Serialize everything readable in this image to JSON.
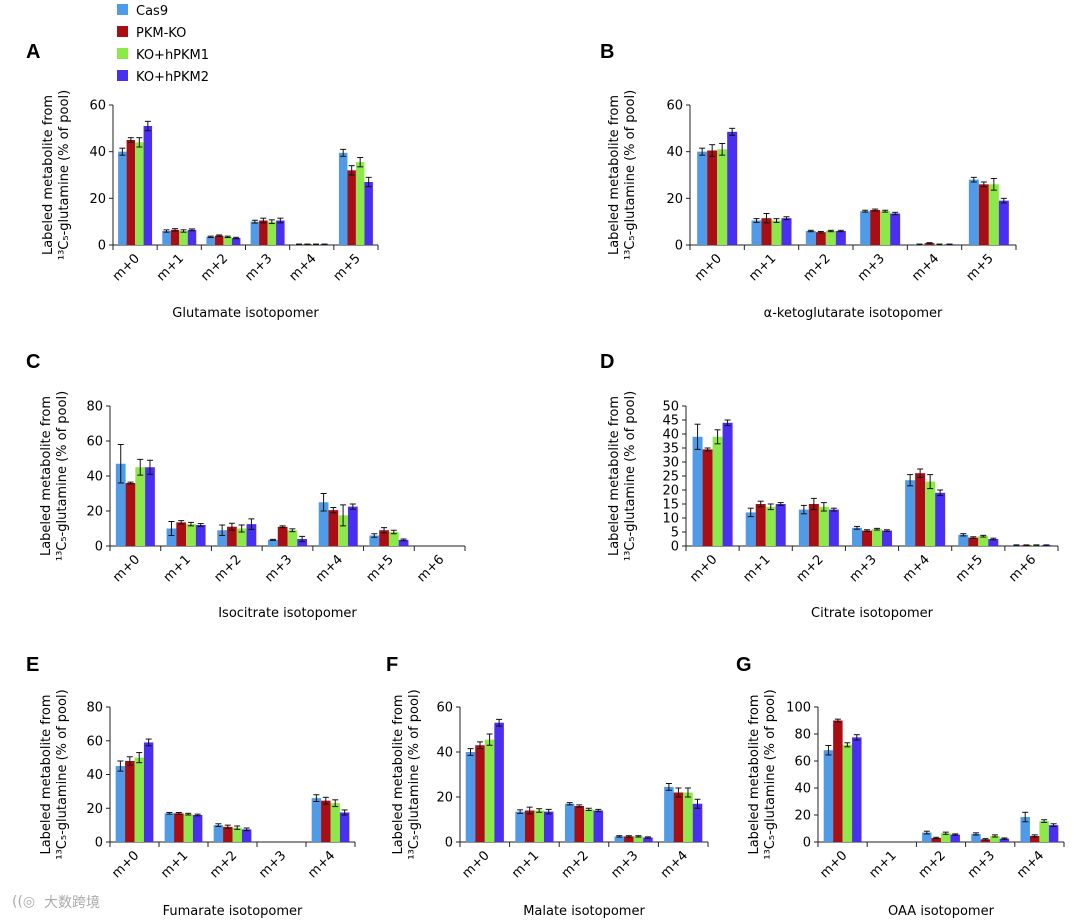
{
  "legend": [
    {
      "label": "Cas9",
      "color": "#4f9be8"
    },
    {
      "label": "PKM-KO",
      "color": "#a80e14"
    },
    {
      "label": "KO+hPKM1",
      "color": "#8de84a"
    },
    {
      "label": "KO+hPKM2",
      "color": "#4b2ff0"
    }
  ],
  "ylabel_line1": "Labeled metabolite from",
  "ylabel_line2": "¹³C₅-glutamine (% of pool)",
  "watermark": "大数跨境",
  "chart_data": [
    {
      "panel": "A",
      "type": "bar",
      "xlabel": "Glutamate isotopomer",
      "ylabel": "Labeled metabolite from 13C5-glutamine (% of pool)",
      "ylim": [
        0,
        60
      ],
      "yticks": [
        0,
        20,
        40,
        60
      ],
      "categories": [
        "m+0",
        "m+1",
        "m+2",
        "m+3",
        "m+4",
        "m+5"
      ],
      "series": [
        {
          "name": "Cas9",
          "values": [
            40,
            6,
            3.5,
            10,
            0.3,
            39.5
          ],
          "errors": [
            1.5,
            0.5,
            0.3,
            0.6,
            0.1,
            1.5
          ]
        },
        {
          "name": "PKM-KO",
          "values": [
            45,
            6.5,
            4,
            10.5,
            0.3,
            32
          ],
          "errors": [
            1,
            0.5,
            0.3,
            1,
            0.1,
            2
          ]
        },
        {
          "name": "KO+hPKM1",
          "values": [
            44,
            6,
            3.5,
            10,
            0.3,
            35.5
          ],
          "errors": [
            2,
            0.5,
            0.3,
            0.8,
            0.1,
            2
          ]
        },
        {
          "name": "KO+hPKM2",
          "values": [
            51,
            6.5,
            3,
            10.5,
            0.3,
            27
          ],
          "errors": [
            2,
            0.4,
            0.3,
            1,
            0.1,
            2
          ]
        }
      ]
    },
    {
      "panel": "B",
      "type": "bar",
      "xlabel": "α-ketoglutarate isotopomer",
      "ylabel": "Labeled metabolite from 13C5-glutamine (% of pool)",
      "ylim": [
        0,
        60
      ],
      "yticks": [
        0,
        20,
        40,
        60
      ],
      "categories": [
        "m+0",
        "m+1",
        "m+2",
        "m+3",
        "m+4",
        "m+5"
      ],
      "series": [
        {
          "name": "Cas9",
          "values": [
            40,
            10.5,
            6,
            14.5,
            0.3,
            28
          ],
          "errors": [
            1.5,
            0.8,
            0.3,
            0.4,
            0.1,
            1
          ]
        },
        {
          "name": "PKM-KO",
          "values": [
            40.5,
            11.5,
            5.5,
            15,
            0.8,
            26
          ],
          "errors": [
            2.5,
            2,
            0.3,
            0.4,
            0.2,
            1
          ]
        },
        {
          "name": "KO+hPKM1",
          "values": [
            41,
            10.5,
            6,
            14.5,
            0.3,
            26
          ],
          "errors": [
            2.5,
            0.8,
            0.3,
            0.4,
            0.1,
            2.5
          ]
        },
        {
          "name": "KO+hPKM2",
          "values": [
            48.5,
            11.5,
            6,
            13.5,
            0.3,
            19
          ],
          "errors": [
            1.5,
            0.6,
            0.3,
            0.5,
            0.1,
            1
          ]
        }
      ]
    },
    {
      "panel": "C",
      "type": "bar",
      "xlabel": "Isocitrate isotopomer",
      "ylabel": "Labeled metabolite from 13C5-glutamine (% of pool)",
      "ylim": [
        0,
        80
      ],
      "yticks": [
        0,
        20,
        40,
        60,
        80
      ],
      "categories": [
        "m+0",
        "m+1",
        "m+2",
        "m+3",
        "m+4",
        "m+5",
        "m+6"
      ],
      "series": [
        {
          "name": "Cas9",
          "values": [
            47,
            10,
            9,
            3.5,
            25,
            6,
            0
          ],
          "errors": [
            11,
            4,
            3,
            0.3,
            5,
            1,
            0
          ]
        },
        {
          "name": "PKM-KO",
          "values": [
            36,
            13.5,
            11,
            11,
            20.5,
            9,
            0
          ],
          "errors": [
            0.5,
            1,
            2,
            0.5,
            1.5,
            1.5,
            0
          ]
        },
        {
          "name": "KO+hPKM1",
          "values": [
            45,
            12.5,
            10,
            9,
            17.5,
            8,
            0
          ],
          "errors": [
            4.5,
            1,
            2,
            0.8,
            6,
            1,
            0
          ]
        },
        {
          "name": "KO+hPKM2",
          "values": [
            45,
            12,
            12.5,
            4,
            22.5,
            3.5,
            0
          ],
          "errors": [
            4,
            0.8,
            3,
            1.5,
            1.5,
            0.5,
            0
          ]
        }
      ]
    },
    {
      "panel": "D",
      "type": "bar",
      "xlabel": "Citrate isotopomer",
      "ylabel": "Labeled metabolite from 13C5-glutamine (% of pool)",
      "ylim": [
        0,
        50
      ],
      "yticks": [
        0,
        5,
        10,
        15,
        20,
        25,
        30,
        35,
        40,
        45,
        50
      ],
      "categories": [
        "m+0",
        "m+1",
        "m+2",
        "m+3",
        "m+4",
        "m+5",
        "m+6"
      ],
      "series": [
        {
          "name": "Cas9",
          "values": [
            39,
            12,
            13,
            6.5,
            23.5,
            4,
            0.3
          ],
          "errors": [
            4.5,
            1.5,
            1.5,
            0.5,
            2,
            0.4,
            0.1
          ]
        },
        {
          "name": "PKM-KO",
          "values": [
            34.5,
            15,
            15,
            5.5,
            26,
            3,
            0.3
          ],
          "errors": [
            0.5,
            1,
            2,
            0.3,
            1.5,
            0.3,
            0.1
          ]
        },
        {
          "name": "KO+hPKM1",
          "values": [
            39,
            14,
            14,
            6,
            23,
            3.5,
            0.3
          ],
          "errors": [
            2.5,
            1,
            1.5,
            0.3,
            2.5,
            0.3,
            0.1
          ]
        },
        {
          "name": "KO+hPKM2",
          "values": [
            44,
            15,
            13,
            5.5,
            19,
            2.5,
            0.3
          ],
          "errors": [
            1,
            0.5,
            0.5,
            0.3,
            1,
            0.3,
            0.1
          ]
        }
      ]
    },
    {
      "panel": "E",
      "type": "bar",
      "xlabel": "Fumarate isotopomer",
      "ylabel": "Labeled metabolite from 13C5-glutamine (% of pool)",
      "ylim": [
        0,
        80
      ],
      "yticks": [
        0,
        20,
        40,
        60,
        80
      ],
      "categories": [
        "m+0",
        "m+1",
        "m+2",
        "m+3",
        "m+4"
      ],
      "series": [
        {
          "name": "Cas9",
          "values": [
            45,
            17,
            10,
            0,
            26
          ],
          "errors": [
            3,
            0.5,
            0.8,
            0,
            2
          ]
        },
        {
          "name": "PKM-KO",
          "values": [
            48,
            17,
            9,
            0,
            24.5
          ],
          "errors": [
            2.5,
            0.5,
            1,
            0,
            2
          ]
        },
        {
          "name": "KO+hPKM1",
          "values": [
            50,
            16.5,
            8.5,
            0,
            23
          ],
          "errors": [
            3,
            0.5,
            1,
            0,
            2
          ]
        },
        {
          "name": "KO+hPKM2",
          "values": [
            59,
            16,
            7.5,
            0,
            17.5
          ],
          "errors": [
            2,
            0.5,
            0.8,
            0,
            1.5
          ]
        }
      ]
    },
    {
      "panel": "F",
      "type": "bar",
      "xlabel": "Malate isotopomer",
      "ylabel": "Labeled metabolite from 13C5-glutamine (% of pool)",
      "ylim": [
        0,
        60
      ],
      "yticks": [
        0,
        20,
        40,
        60
      ],
      "categories": [
        "m+0",
        "m+1",
        "m+2",
        "m+3",
        "m+4"
      ],
      "series": [
        {
          "name": "Cas9",
          "values": [
            40,
            13.5,
            17,
            2.5,
            24.5
          ],
          "errors": [
            1.5,
            0.8,
            0.5,
            0.3,
            1.5
          ]
        },
        {
          "name": "PKM-KO",
          "values": [
            43,
            14,
            16,
            2.5,
            22
          ],
          "errors": [
            1.5,
            1.5,
            0.5,
            0.3,
            2
          ]
        },
        {
          "name": "KO+hPKM1",
          "values": [
            45.5,
            14,
            14.5,
            2.5,
            22
          ],
          "errors": [
            2.5,
            0.8,
            0.5,
            0.3,
            2
          ]
        },
        {
          "name": "KO+hPKM2",
          "values": [
            53,
            13.5,
            14,
            2,
            17
          ],
          "errors": [
            1.5,
            1,
            0.5,
            0.3,
            2
          ]
        }
      ]
    },
    {
      "panel": "G",
      "type": "bar",
      "xlabel": "OAA isotopomer",
      "ylabel": "Labeled metabolite from 13C5-glutamine (% of pool)",
      "ylim": [
        0,
        100
      ],
      "yticks": [
        0,
        20,
        40,
        60,
        80,
        100
      ],
      "categories": [
        "m+0",
        "m+1",
        "m+2",
        "m+3",
        "m+4"
      ],
      "series": [
        {
          "name": "Cas9",
          "values": [
            68,
            0,
            7,
            6,
            18.5
          ],
          "errors": [
            3.5,
            0,
            1,
            0.8,
            3.5
          ]
        },
        {
          "name": "PKM-KO",
          "values": [
            90,
            0,
            3,
            2,
            4.5
          ],
          "errors": [
            1,
            0,
            0.5,
            0.5,
            0.8
          ]
        },
        {
          "name": "KO+hPKM1",
          "values": [
            72,
            0,
            6.5,
            4.5,
            15.5
          ],
          "errors": [
            1.5,
            0,
            0.8,
            0.8,
            1
          ]
        },
        {
          "name": "KO+hPKM2",
          "values": [
            77.5,
            0,
            5.5,
            2.5,
            12.5
          ],
          "errors": [
            2,
            0,
            0.5,
            0.5,
            1
          ]
        }
      ]
    }
  ]
}
